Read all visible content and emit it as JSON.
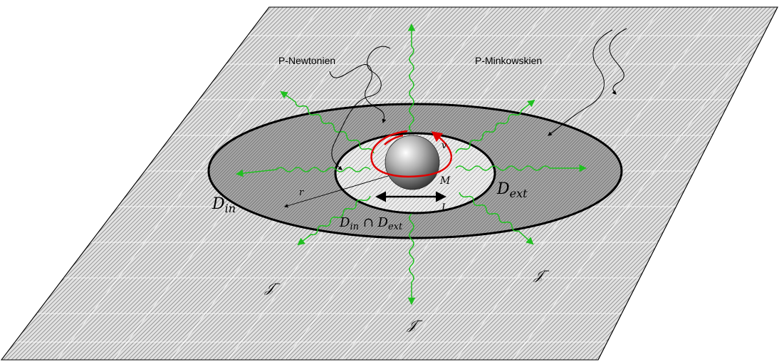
{
  "labels": {
    "p_newtonien": "P-Newtonien",
    "p_minkowskien": "P-Minkowskien",
    "v": "v",
    "M": "M",
    "r": "r",
    "L": "L",
    "d_ext": {
      "base": "D",
      "sub": "ext"
    },
    "d_in": {
      "base": "D",
      "sub": "in"
    },
    "d_intersection": {
      "base1": "D",
      "sub1": "in",
      "op": " ∩ ",
      "base2": "D",
      "sub2": "ext"
    },
    "scri_minus": "𝒥⁻",
    "scri": {
      "base": "𝒥",
      "sup": "−"
    }
  },
  "colors": {
    "plane_fill": "#d8d8d8",
    "plane_lines": "#6e6e6e",
    "outer_ring": "#9a9a9a",
    "inner_disk": "#dedede",
    "wave_green": "#20c020",
    "orbit_red": "#e00000",
    "outline": "#000000"
  }
}
